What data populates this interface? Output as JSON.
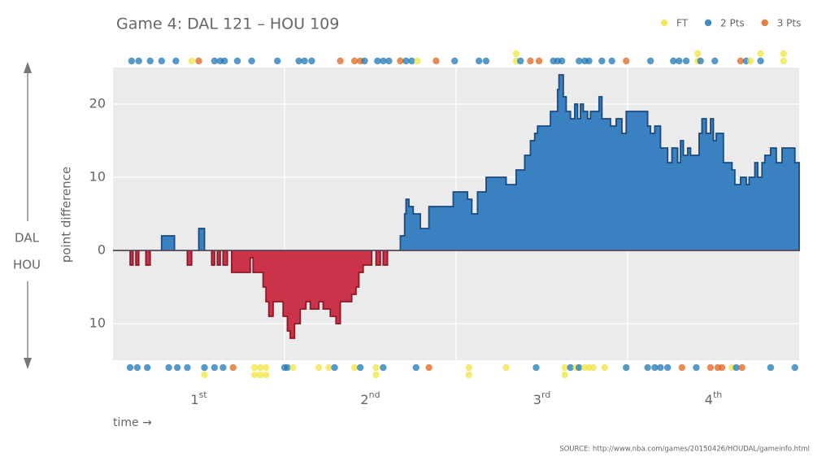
{
  "chart_data": {
    "type": "step-area",
    "title": "Game 4: DAL 121  –  HOU 109",
    "y_label": "point difference",
    "x_label": "time →",
    "source": "SOURCE: http://www.nba.com/games/20150426/HOUDAL/gameinfo.html",
    "xlim": [
      0,
      48
    ],
    "ylim": [
      -15,
      25
    ],
    "yticks": [
      20,
      10,
      0,
      {
        "value": -10,
        "label": "10"
      }
    ],
    "xticks": [
      {
        "value": 6,
        "label": "1",
        "sup": "st"
      },
      {
        "value": 18,
        "label": "2",
        "sup": "nd"
      },
      {
        "value": 30,
        "label": "3",
        "sup": "rd"
      },
      {
        "value": 42,
        "label": "4",
        "sup": "th"
      }
    ],
    "x_gridlines": [
      12,
      24,
      36
    ],
    "grid": true,
    "color_above": "#2f7bbf",
    "color_below": "#c8293f",
    "x": [
      0,
      1.2,
      1.4,
      1.6,
      1.8,
      2.3,
      2.6,
      3.4,
      4.3,
      5.2,
      5.5,
      6.0,
      6.4,
      6.9,
      7.1,
      7.3,
      7.5,
      7.7,
      8.0,
      8.3,
      9.6,
      9.8,
      10.5,
      10.7,
      10.9,
      11.2,
      11.9,
      12.2,
      12.4,
      12.7,
      13.1,
      13.5,
      13.8,
      14.4,
      14.7,
      15.2,
      15.6,
      15.9,
      16.7,
      17.0,
      17.2,
      17.5,
      18.1,
      18.4,
      18.7,
      18.9,
      19.2,
      20.1,
      20.4,
      20.5,
      20.7,
      21.0,
      21.5,
      22.1,
      23.8,
      24.8,
      25.1,
      25.5,
      26.1,
      27.5,
      28.2,
      28.8,
      29.2,
      29.5,
      29.7,
      30.6,
      31.1,
      31.2,
      31.5,
      31.7,
      32.0,
      32.3,
      32.5,
      32.7,
      32.9,
      33.2,
      33.4,
      34.0,
      34.2,
      34.8,
      35.2,
      35.6,
      35.9,
      37.4,
      37.6,
      37.9,
      38.3,
      38.8,
      39.1,
      39.5,
      39.7,
      39.9,
      40.2,
      40.4,
      41.0,
      41.2,
      41.5,
      41.8,
      42.0,
      42.2,
      42.7,
      43.3,
      43.5,
      43.9,
      44.3,
      44.5,
      44.9,
      45.1,
      45.4,
      45.6,
      46.0,
      46.4,
      46.8,
      47.7
    ],
    "values": [
      0,
      -2,
      0,
      -2,
      0,
      -2,
      0,
      2,
      0,
      -2,
      0,
      3,
      0,
      -2,
      0,
      -2,
      0,
      -2,
      0,
      -3,
      -1,
      -3,
      -5,
      -7,
      -9,
      -7,
      -9,
      -11,
      -12,
      -10,
      -8,
      -7,
      -8,
      -7,
      -8,
      -9,
      -10,
      -7,
      -6,
      -5,
      -3,
      -2,
      0,
      -2,
      0,
      -2,
      0,
      2,
      5,
      7,
      6,
      5,
      3,
      6,
      8,
      7,
      5,
      8,
      10,
      9,
      11,
      13,
      15,
      16,
      17,
      19,
      22,
      24,
      21,
      19,
      18,
      20,
      18,
      20,
      19,
      18,
      19,
      21,
      18,
      17,
      18,
      16,
      19,
      17,
      16,
      17,
      14,
      12,
      14,
      12,
      15,
      13,
      14,
      13,
      16,
      18,
      16,
      18,
      15,
      16,
      12,
      11,
      9,
      10,
      9,
      10,
      12,
      10,
      12,
      13,
      14,
      12,
      14,
      12
    ],
    "event_types": [
      {
        "name": "FT",
        "color": "#f0e442"
      },
      {
        "name": "2 Pts",
        "color": "#1f77b4"
      },
      {
        "name": "3 Pts",
        "color": "#e0661c"
      }
    ],
    "scoring": [
      {
        "team": "DAL",
        "x": [
          1.3,
          1.8,
          2.6,
          3.4,
          4.4,
          5.5,
          6.0,
          7.1,
          7.5,
          7.8,
          8.7,
          9.7,
          11.5,
          13.0,
          13.4,
          13.9,
          15.9,
          16.9,
          17.3,
          17.6,
          18.5,
          18.9,
          19.3,
          20.1,
          20.5,
          20.9,
          21.3,
          22.6,
          23.9,
          25.6,
          26.1,
          28.2,
          28.2,
          28.5,
          29.2,
          29.8,
          30.8,
          31.1,
          31.4,
          32.6,
          33.0,
          33.3,
          34.2,
          34.9,
          35.9,
          37.6,
          39.2,
          39.6,
          40.1,
          40.9,
          40.9,
          41.1,
          42.1,
          43.9,
          44.3,
          44.6,
          45.3,
          45.3,
          46.9,
          46.9
        ],
        "types": [
          "2 Pts",
          "2 Pts",
          "2 Pts",
          "2 Pts",
          "2 Pts",
          "FT",
          "3 Pts",
          "2 Pts",
          "2 Pts",
          "2 Pts",
          "2 Pts",
          "2 Pts",
          "2 Pts",
          "2 Pts",
          "2 Pts",
          "2 Pts",
          "3 Pts",
          "3 Pts",
          "3 Pts",
          "2 Pts",
          "2 Pts",
          "2 Pts",
          "2 Pts",
          "3 Pts",
          "2 Pts",
          "2 Pts",
          "FT",
          "3 Pts",
          "2 Pts",
          "2 Pts",
          "2 Pts",
          "FT",
          "FT",
          "2 Pts",
          "3 Pts",
          "3 Pts",
          "2 Pts",
          "2 Pts",
          "2 Pts",
          "2 Pts",
          "2 Pts",
          "2 Pts",
          "2 Pts",
          "2 Pts",
          "3 Pts",
          "2 Pts",
          "2 Pts",
          "2 Pts",
          "2 Pts",
          "FT",
          "FT",
          "2 Pts",
          "2 Pts",
          "3 Pts",
          "2 Pts",
          "FT",
          "2 Pts",
          "FT",
          "FT",
          "FT"
        ]
      },
      {
        "team": "HOU",
        "x": [
          1.2,
          1.7,
          2.4,
          3.9,
          4.5,
          5.2,
          6.4,
          6.4,
          7.1,
          7.7,
          8.4,
          9.9,
          9.9,
          10.3,
          10.3,
          10.7,
          10.7,
          12.0,
          12.2,
          12.6,
          14.4,
          15.1,
          15.5,
          16.9,
          17.3,
          18.4,
          18.4,
          18.9,
          21.2,
          22.1,
          24.9,
          24.9,
          27.5,
          29.6,
          31.6,
          31.6,
          32.0,
          32.4,
          32.6,
          33.0,
          33.3,
          33.6,
          34.4,
          35.9,
          37.4,
          37.9,
          38.3,
          38.8,
          39.8,
          40.8,
          41.8,
          42.3,
          42.6,
          43.3,
          43.6,
          44.0,
          46.0,
          47.7
        ],
        "types": [
          "2 Pts",
          "2 Pts",
          "2 Pts",
          "2 Pts",
          "2 Pts",
          "2 Pts",
          "2 Pts",
          "FT",
          "2 Pts",
          "2 Pts",
          "3 Pts",
          "FT",
          "FT",
          "FT",
          "FT",
          "FT",
          "FT",
          "2 Pts",
          "2 Pts",
          "FT",
          "FT",
          "FT",
          "2 Pts",
          "FT",
          "2 Pts",
          "FT",
          "FT",
          "2 Pts",
          "2 Pts",
          "3 Pts",
          "FT",
          "FT",
          "FT",
          "2 Pts",
          "FT",
          "FT",
          "2 Pts",
          "FT",
          "2 Pts",
          "FT",
          "FT",
          "FT",
          "FT",
          "2 Pts",
          "2 Pts",
          "2 Pts",
          "2 Pts",
          "2 Pts",
          "3 Pts",
          "2 Pts",
          "3 Pts",
          "3 Pts",
          "3 Pts",
          "FT",
          "2 Pts",
          "3 Pts",
          "2 Pts",
          "2 Pts"
        ]
      }
    ]
  }
}
